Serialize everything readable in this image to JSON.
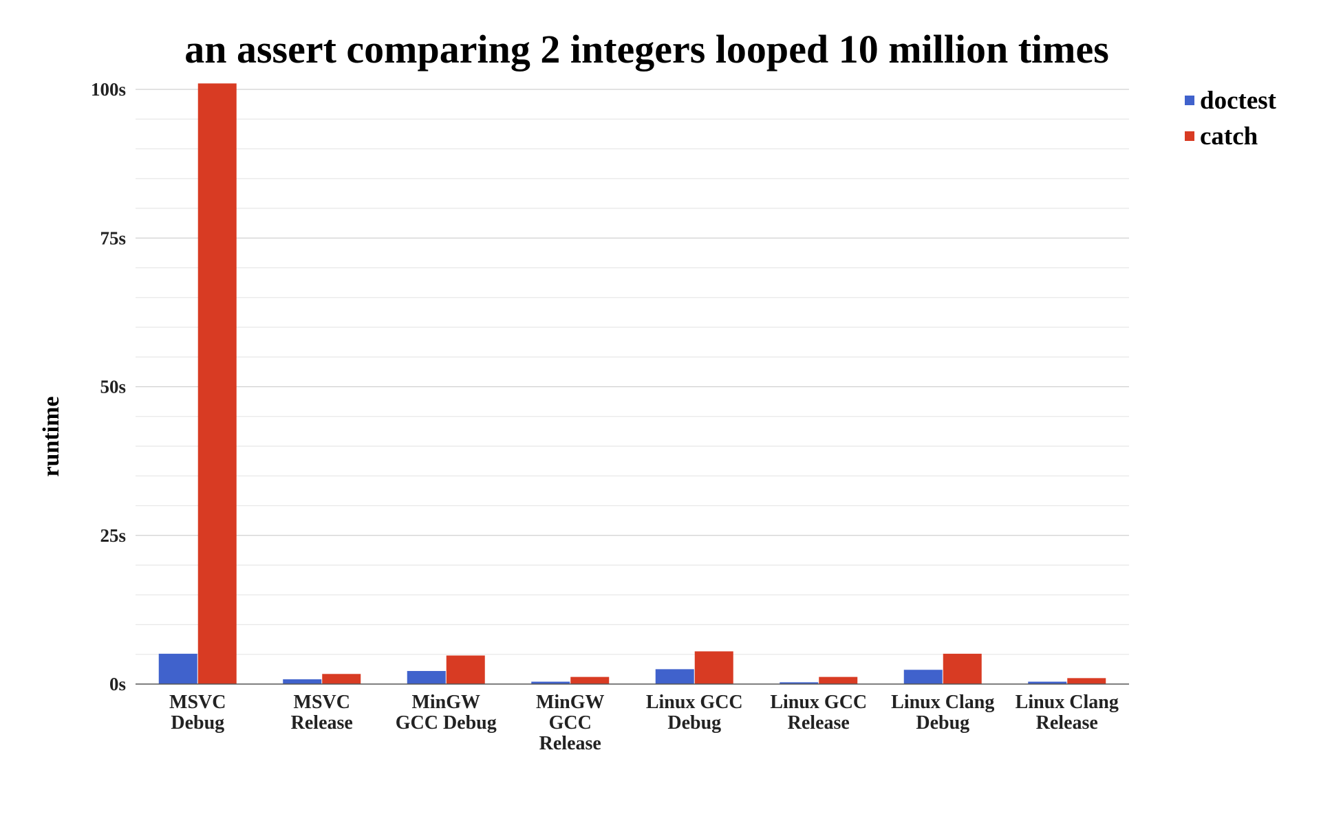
{
  "chart_data": {
    "type": "bar",
    "title": "an assert comparing 2 integers looped 10 million times",
    "xlabel": "",
    "ylabel": "runtime",
    "ylim": [
      0,
      100
    ],
    "y_ticks": [
      {
        "value": 0,
        "label": "0s"
      },
      {
        "value": 25,
        "label": "25s"
      },
      {
        "value": 50,
        "label": "50s"
      },
      {
        "value": 75,
        "label": "75s"
      },
      {
        "value": 100,
        "label": "100s"
      }
    ],
    "grid": true,
    "legend_position": "top-right",
    "categories": [
      [
        "MSVC",
        "Debug"
      ],
      [
        "MSVC",
        "Release"
      ],
      [
        "MinGW",
        "GCC Debug"
      ],
      [
        "MinGW",
        "GCC",
        "Release"
      ],
      [
        "Linux GCC",
        "Debug"
      ],
      [
        "Linux GCC",
        "Release"
      ],
      [
        "Linux Clang",
        "Debug"
      ],
      [
        "Linux Clang",
        "Release"
      ]
    ],
    "series": [
      {
        "name": "doctest",
        "color": "#4062cc",
        "values": [
          5.1,
          0.8,
          2.2,
          0.4,
          2.5,
          0.3,
          2.4,
          0.4
        ]
      },
      {
        "name": "catch",
        "color": "#d83b23",
        "values": [
          101,
          1.7,
          4.8,
          1.2,
          5.5,
          1.2,
          5.1,
          1.0
        ]
      }
    ]
  }
}
